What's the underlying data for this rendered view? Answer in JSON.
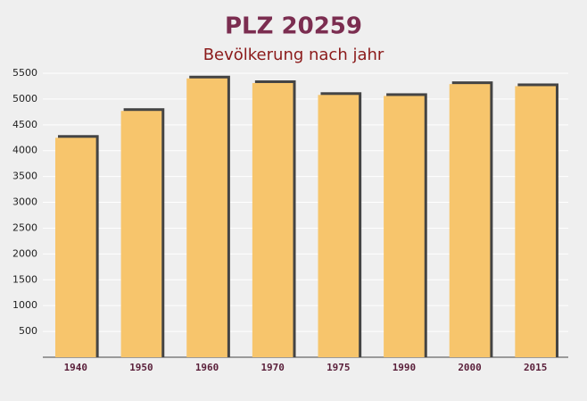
{
  "chart_data": {
    "type": "bar",
    "title": "PLZ 20259",
    "subtitle": "Bevölkerung nach jahr",
    "categories": [
      "1940",
      "1950",
      "1960",
      "1970",
      "1975",
      "1990",
      "2000",
      "2015"
    ],
    "values": [
      4250,
      4770,
      5400,
      5310,
      5080,
      5060,
      5290,
      5250
    ],
    "color": "#f7c56c",
    "ylim": [
      0,
      5500
    ],
    "yticks": [
      500,
      1000,
      1500,
      2000,
      2500,
      3000,
      3500,
      4000,
      4500,
      5000,
      5500
    ],
    "grid": true
  }
}
